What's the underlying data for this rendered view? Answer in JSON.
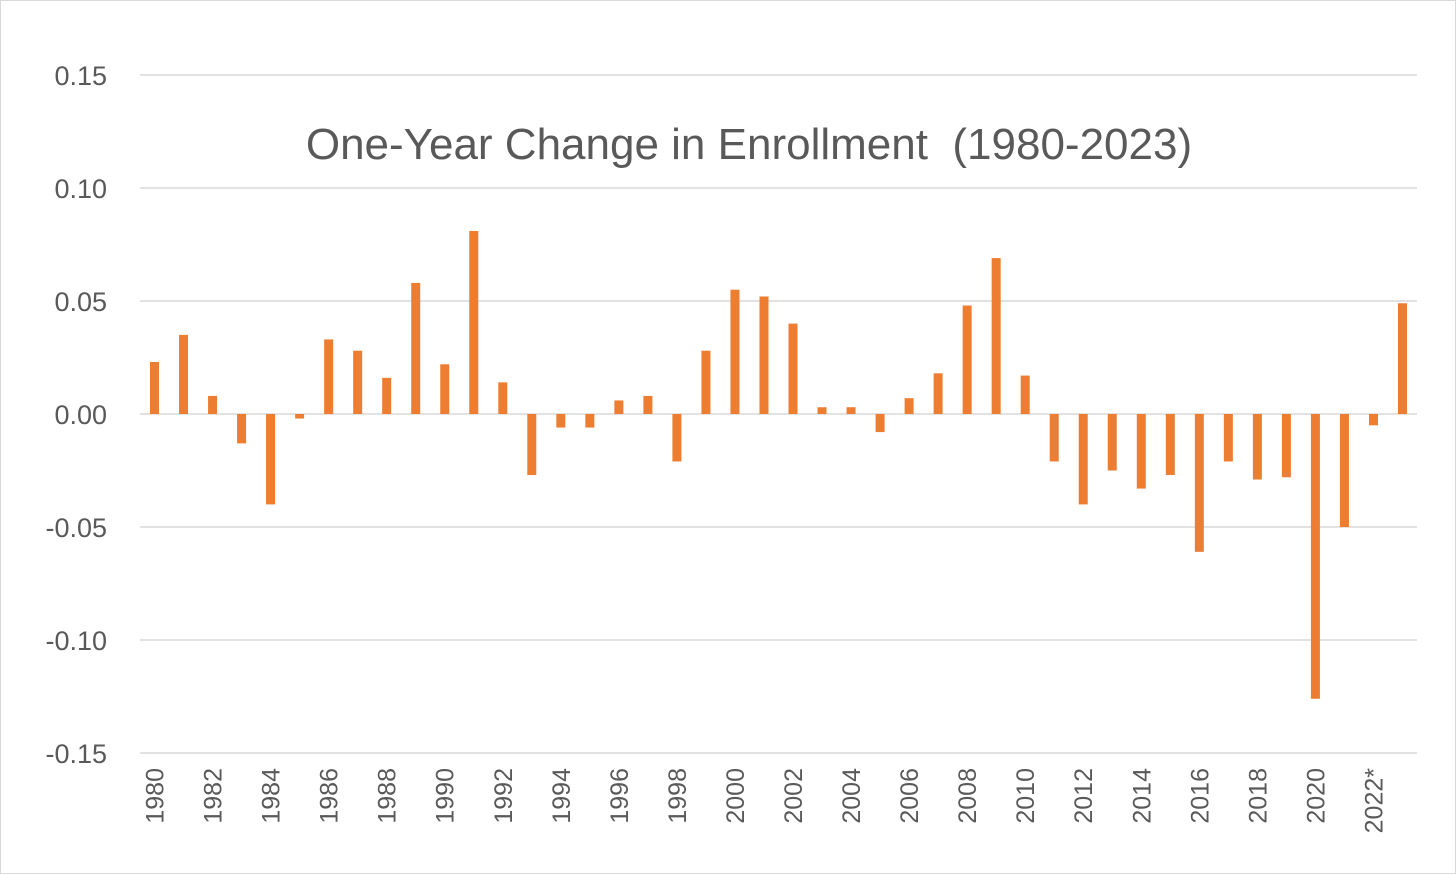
{
  "chart_data": {
    "type": "bar",
    "title": "One-Year Change in Enrollment  (1980-2023)",
    "xlabel": "",
    "ylabel": "",
    "ylim": [
      -0.15,
      0.15
    ],
    "yticks": [
      "0.15",
      "0.10",
      "0.05",
      "0.00",
      "-0.05",
      "-0.10",
      "-0.15"
    ],
    "ytick_values": [
      0.15,
      0.1,
      0.05,
      0.0,
      -0.05,
      -0.1,
      -0.15
    ],
    "grid": true,
    "bar_color": "#ED7D31",
    "categories": [
      "1980",
      "1981",
      "1982",
      "1983",
      "1984",
      "1985",
      "1986",
      "1987",
      "1988",
      "1989",
      "1990",
      "1991",
      "1992",
      "1993",
      "1994",
      "1995",
      "1996",
      "1997",
      "1998",
      "1999",
      "2000",
      "2001",
      "2002",
      "2003",
      "2004",
      "2005",
      "2006",
      "2007",
      "2008",
      "2009",
      "2010",
      "2011",
      "2012",
      "2013",
      "2014",
      "2015",
      "2016",
      "2017",
      "2018",
      "2019",
      "2020",
      "2021",
      "2022*",
      "2023"
    ],
    "xtick_labels": [
      "1980",
      "1982",
      "1984",
      "1986",
      "1988",
      "1990",
      "1992",
      "1994",
      "1996",
      "1998",
      "2000",
      "2002",
      "2004",
      "2006",
      "2008",
      "2010",
      "2012",
      "2014",
      "2016",
      "2018",
      "2020",
      "2022*"
    ],
    "values": [
      0.023,
      0.035,
      0.008,
      -0.013,
      -0.04,
      -0.002,
      0.033,
      0.028,
      0.016,
      0.058,
      0.022,
      0.081,
      0.014,
      -0.027,
      -0.006,
      -0.006,
      0.006,
      0.008,
      -0.021,
      0.028,
      0.055,
      0.052,
      0.04,
      0.003,
      0.003,
      -0.008,
      0.007,
      0.018,
      0.048,
      0.069,
      0.017,
      -0.021,
      -0.04,
      -0.025,
      -0.033,
      -0.027,
      -0.061,
      -0.021,
      -0.029,
      -0.028,
      -0.126,
      -0.05,
      -0.005,
      0.049
    ]
  }
}
